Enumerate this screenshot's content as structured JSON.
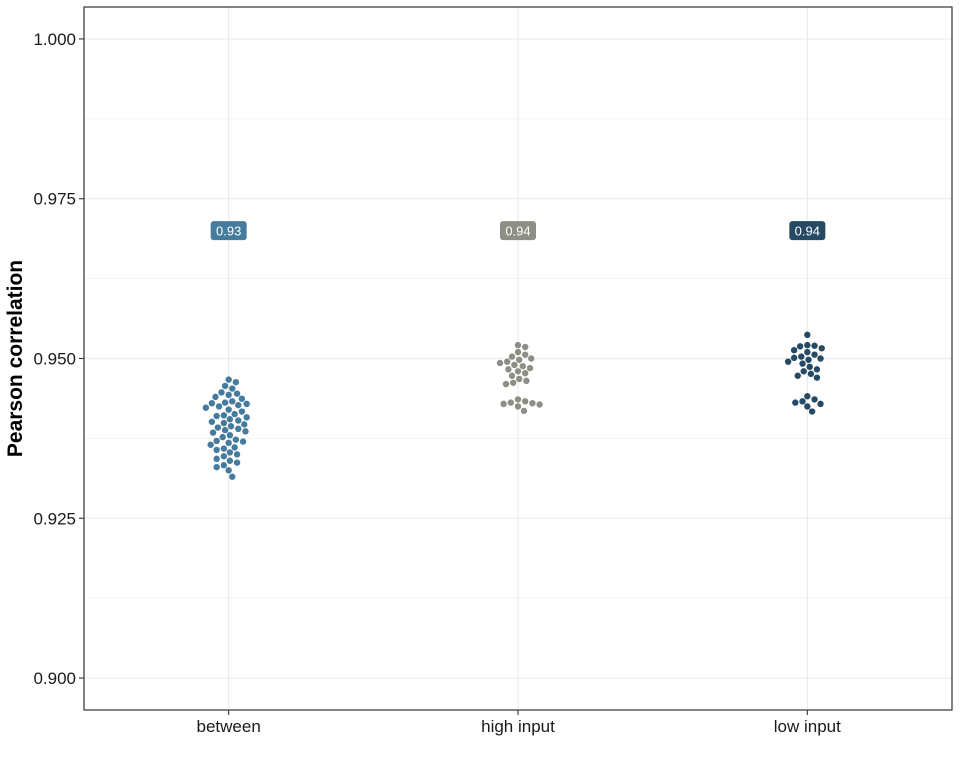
{
  "chart_data": {
    "type": "scatter",
    "subtype": "beeswarm",
    "title": "",
    "xlabel": "",
    "ylabel": "Pearson correlation",
    "ylim": [
      0.895,
      1.005
    ],
    "yticks": [
      "0.900",
      "0.925",
      "0.950",
      "0.975",
      "1.000"
    ],
    "ytick_values": [
      0.9,
      0.925,
      0.95,
      0.975,
      1.0
    ],
    "grid": true,
    "categories": [
      "between",
      "high input",
      "low input"
    ],
    "summary_label_y": 0.97,
    "series": [
      {
        "category": "between",
        "color": "#457b9d",
        "summary_label": "0.93",
        "values": [
          0.9467,
          0.9463,
          0.9457,
          0.9453,
          0.9447,
          0.9445,
          0.9443,
          0.944,
          0.9437,
          0.9433,
          0.9431,
          0.943,
          0.9429,
          0.9427,
          0.9425,
          0.9423,
          0.942,
          0.9417,
          0.9413,
          0.9411,
          0.941,
          0.9408,
          0.9405,
          0.9403,
          0.9401,
          0.9399,
          0.9397,
          0.9394,
          0.9392,
          0.939,
          0.9388,
          0.9386,
          0.9384,
          0.938,
          0.9377,
          0.9373,
          0.9371,
          0.937,
          0.9368,
          0.9365,
          0.9361,
          0.9359,
          0.9357,
          0.9353,
          0.935,
          0.9347,
          0.9343,
          0.934,
          0.9337,
          0.9333,
          0.933,
          0.9325,
          0.9315
        ]
      },
      {
        "category": "high input",
        "color": "#8d8e84",
        "summary_label": "0.94",
        "values": [
          0.9521,
          0.9518,
          0.951,
          0.9506,
          0.9503,
          0.95,
          0.9498,
          0.9495,
          0.9493,
          0.949,
          0.9488,
          0.9485,
          0.9483,
          0.948,
          0.9477,
          0.9473,
          0.9468,
          0.9465,
          0.9462,
          0.946,
          0.9436,
          0.9433,
          0.9431,
          0.943,
          0.9429,
          0.9428,
          0.9425,
          0.9418
        ]
      },
      {
        "category": "low input",
        "color": "#264a64",
        "summary_label": "0.94",
        "values": [
          0.9537,
          0.9521,
          0.952,
          0.9519,
          0.9516,
          0.9513,
          0.951,
          0.9506,
          0.9503,
          0.9501,
          0.95,
          0.9498,
          0.9495,
          0.9492,
          0.9487,
          0.9483,
          0.948,
          0.9476,
          0.9473,
          0.947,
          0.9441,
          0.9436,
          0.9433,
          0.9431,
          0.9429,
          0.9425,
          0.9417
        ]
      }
    ]
  }
}
